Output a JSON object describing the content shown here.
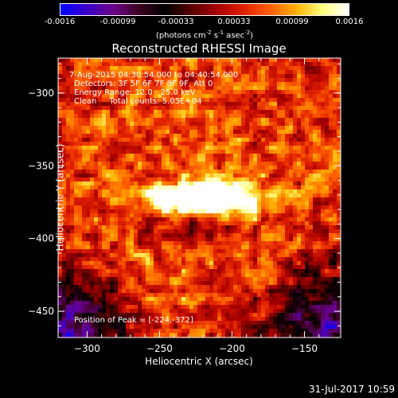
{
  "colorbar": {
    "ticks": [
      "-0.0016",
      "-0.00099",
      "-0.00033",
      "0.00033",
      "0.00099",
      "0.0016"
    ],
    "unit_prefix": "(photons cm",
    "unit_sup1": "-2",
    "unit_mid": " s",
    "unit_sup2": "-1",
    "unit_mid2": " asec",
    "unit_sup3": "-2",
    "unit_suffix": ")"
  },
  "title": "Reconstructed RHESSI Image",
  "info": {
    "line1": "7-Aug-2015 04:30:54.000 to 04:40:54.000",
    "line2": "Detectors: 3F 5F 6F 7F 8F 9F, Att 0",
    "line3": "Energy Range: 12.0 - 25.0 keV",
    "line4": "Clean     Total counts: 5.05E+04",
    "peak": "Position of Peak = [-224,-372]"
  },
  "timestamp": "31-Jul-2017 10:59",
  "chart_data": {
    "type": "heatmap",
    "title": "Reconstructed RHESSI Image",
    "xlabel": "Heliocentric X (arcsec)",
    "ylabel": "Heliocentric Y (arcsec)",
    "xlim": [
      -320,
      -125
    ],
    "ylim": [
      -468,
      -276
    ],
    "x_ticks": [
      -300,
      -250,
      -200,
      -150
    ],
    "y_ticks": [
      -450,
      -400,
      -350,
      -300
    ],
    "x_tick_labels": [
      "−300",
      "−250",
      "−200",
      "−150"
    ],
    "y_tick_labels": [
      "−450",
      "−400",
      "−350",
      "−300"
    ],
    "colorbar_range": [
      -0.0016,
      0.0016
    ],
    "peak": {
      "x": -224,
      "y": -372
    },
    "colormap": [
      "#0000ff",
      "#3a00c8",
      "#6a008a",
      "#3a0020",
      "#000000",
      "#5a0000",
      "#aa0000",
      "#e02000",
      "#ff6000",
      "#ffb000",
      "#ffff80",
      "#ffffff"
    ]
  }
}
